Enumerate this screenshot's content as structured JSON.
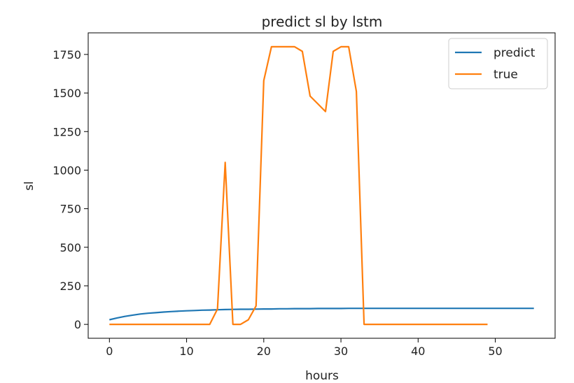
{
  "chart_data": {
    "type": "line",
    "title": "predict sl by lstm",
    "xlabel": "hours",
    "ylabel": "sl",
    "xlim": [
      -2.75,
      57.75
    ],
    "ylim": [
      -90,
      1890
    ],
    "xticks": [
      0,
      10,
      20,
      30,
      40,
      50
    ],
    "yticks": [
      0,
      250,
      500,
      750,
      1000,
      1250,
      1500,
      1750
    ],
    "grid": false,
    "legend_position": "top-right",
    "series": [
      {
        "name": "predict",
        "color": "#1f77b4",
        "x": [
          0,
          1,
          2,
          3,
          4,
          5,
          6,
          7,
          8,
          9,
          10,
          11,
          12,
          13,
          14,
          15,
          16,
          17,
          18,
          19,
          20,
          21,
          22,
          23,
          24,
          25,
          26,
          27,
          28,
          29,
          30,
          31,
          32,
          33,
          34,
          35,
          36,
          37,
          38,
          39,
          40,
          41,
          42,
          43,
          44,
          45,
          46,
          47,
          48,
          49,
          50,
          51,
          52,
          53,
          54,
          55
        ],
        "y": [
          30,
          42,
          52,
          60,
          67,
          72,
          76,
          80,
          83,
          86,
          88,
          90,
          92,
          93,
          95,
          96,
          97,
          98,
          98,
          99,
          100,
          100,
          101,
          101,
          102,
          102,
          102,
          103,
          103,
          103,
          103,
          104,
          104,
          104,
          104,
          104,
          104,
          104,
          104,
          104,
          104,
          104,
          104,
          104,
          104,
          104,
          104,
          104,
          104,
          104,
          104,
          104,
          104,
          104,
          104,
          104
        ]
      },
      {
        "name": "true",
        "color": "#ff7f0e",
        "x": [
          0,
          1,
          2,
          3,
          4,
          5,
          6,
          7,
          8,
          9,
          10,
          11,
          12,
          13,
          14,
          15,
          16,
          17,
          18,
          19,
          20,
          21,
          22,
          23,
          24,
          25,
          26,
          27,
          28,
          29,
          30,
          31,
          32,
          33,
          34,
          35,
          36,
          37,
          38,
          39,
          40,
          41,
          42,
          43,
          44,
          45,
          46,
          47,
          48,
          49
        ],
        "y": [
          0,
          0,
          0,
          0,
          0,
          0,
          0,
          0,
          0,
          0,
          0,
          0,
          0,
          0,
          100,
          1050,
          0,
          0,
          30,
          120,
          1580,
          1800,
          1800,
          1800,
          1800,
          1770,
          1480,
          1430,
          1380,
          1770,
          1800,
          1800,
          1510,
          0,
          0,
          0,
          0,
          0,
          0,
          0,
          0,
          0,
          0,
          0,
          0,
          0,
          0,
          0,
          0,
          0
        ]
      }
    ]
  }
}
